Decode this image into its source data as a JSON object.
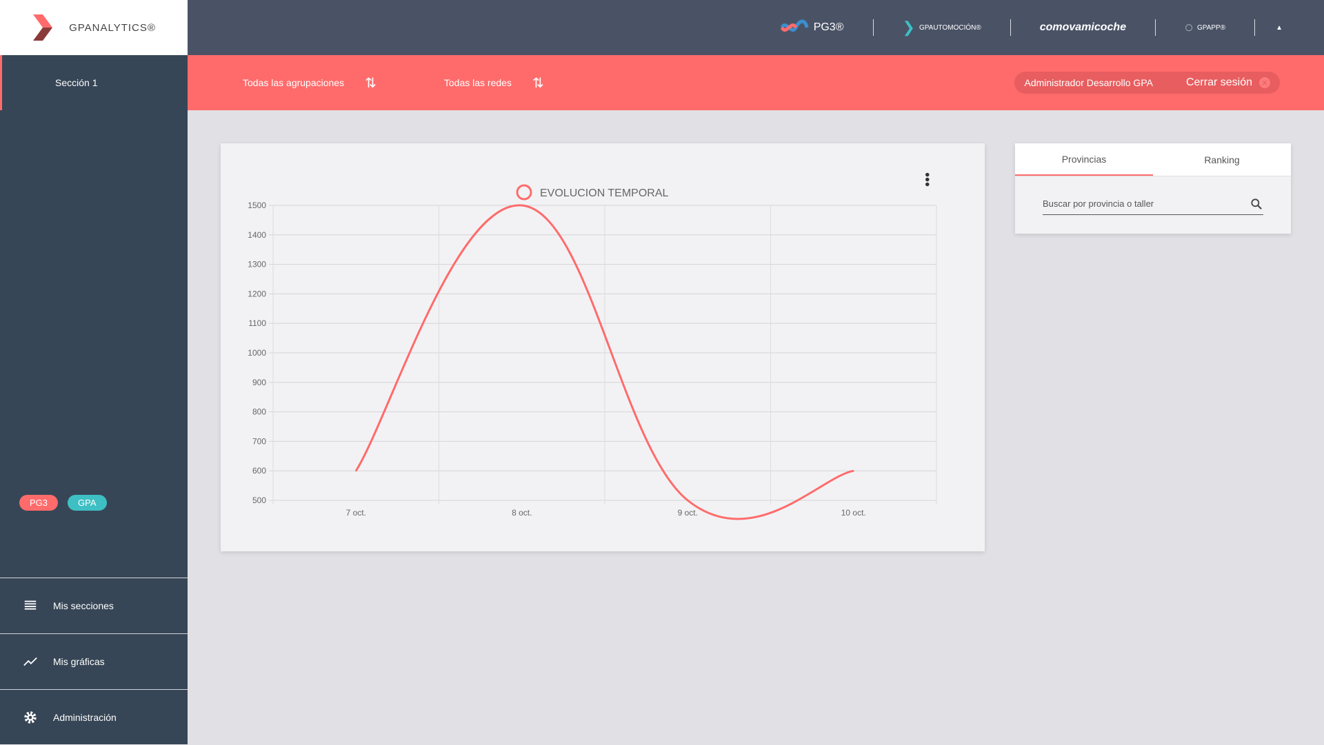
{
  "header": {
    "logo": "GPANALYTICS®",
    "brands": [
      "PG3®",
      "GPAUTOMOCIÓN®",
      "comovamicoche",
      "GPAPP®"
    ]
  },
  "sidebar": {
    "section": "Sección 1",
    "badges": [
      {
        "label": "PG3",
        "color": "#ff6b6b"
      },
      {
        "label": "GPA",
        "color": "#3dbfc4"
      }
    ],
    "menu": [
      {
        "label": "Mis secciones",
        "icon": "list-icon"
      },
      {
        "label": "Mis gráficas",
        "icon": "chart-line-icon"
      },
      {
        "label": "Administración",
        "icon": "gear-icon"
      }
    ]
  },
  "filters": {
    "groupings": "Todas las agrupaciones",
    "networks": "Todas las redes"
  },
  "user": {
    "name": "Administrador Desarrollo GPA",
    "logout": "Cerrar sesión"
  },
  "panel": {
    "tabs": [
      "Provincias",
      "Ranking"
    ],
    "search_placeholder": "Buscar por provincia o taller"
  },
  "colors": {
    "accent": "#ff6b6b",
    "topbar": "#4a5366",
    "sidebar": "#374656"
  },
  "chart_data": {
    "type": "line",
    "legend": "EVOLUCION TEMPORAL",
    "legend_placement": "top",
    "categories": [
      "7 oct.",
      "8 oct.",
      "9 oct.",
      "10 oct."
    ],
    "values": [
      600,
      1500,
      500,
      600
    ],
    "ylim": [
      500,
      1500
    ],
    "yticks": [
      500,
      600,
      700,
      800,
      900,
      1000,
      1100,
      1200,
      1300,
      1400,
      1500
    ],
    "grid": true,
    "color": "#ff6b6b"
  }
}
